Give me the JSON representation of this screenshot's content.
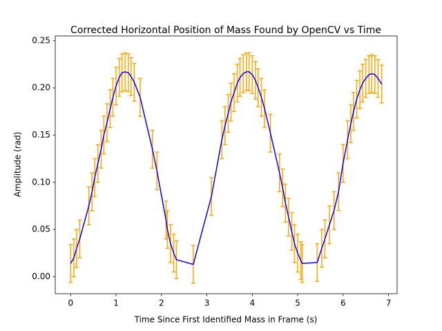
{
  "chart_data": {
    "type": "line",
    "title": "Corrected Horizontal Position of Mass Found by OpenCV vs Time",
    "xlabel": "Time Since First Identified Mass in Frame (s)",
    "ylabel": "Amplitude (rad)",
    "x": [
      0.0,
      0.07,
      0.13,
      0.2,
      0.4,
      0.47,
      0.53,
      0.6,
      0.67,
      0.73,
      0.8,
      0.87,
      0.93,
      1.0,
      1.07,
      1.13,
      1.2,
      1.27,
      1.33,
      1.4,
      1.53,
      1.8,
      1.9,
      2.1,
      2.13,
      2.2,
      2.27,
      2.33,
      2.7,
      3.1,
      3.33,
      3.4,
      3.47,
      3.53,
      3.6,
      3.67,
      3.73,
      3.8,
      3.87,
      3.93,
      4.0,
      4.07,
      4.13,
      4.2,
      4.27,
      4.4,
      4.6,
      4.67,
      4.73,
      4.8,
      4.87,
      4.93,
      5.0,
      5.07,
      5.1,
      5.43,
      5.53,
      5.6,
      5.7,
      5.8,
      5.9,
      6.0,
      6.1,
      6.17,
      6.23,
      6.3,
      6.37,
      6.43,
      6.5,
      6.57,
      6.63,
      6.7,
      6.77,
      6.85
    ],
    "values": [
      0.014,
      0.02,
      0.03,
      0.04,
      0.075,
      0.09,
      0.105,
      0.12,
      0.135,
      0.15,
      0.163,
      0.178,
      0.19,
      0.202,
      0.211,
      0.216,
      0.217,
      0.216,
      0.212,
      0.206,
      0.19,
      0.135,
      0.112,
      0.06,
      0.05,
      0.035,
      0.025,
      0.018,
      0.013,
      0.085,
      0.145,
      0.16,
      0.173,
      0.185,
      0.195,
      0.205,
      0.211,
      0.215,
      0.217,
      0.217,
      0.214,
      0.208,
      0.2,
      0.19,
      0.178,
      0.152,
      0.11,
      0.094,
      0.078,
      0.063,
      0.048,
      0.035,
      0.025,
      0.017,
      0.014,
      0.015,
      0.03,
      0.04,
      0.055,
      0.07,
      0.09,
      0.12,
      0.145,
      0.162,
      0.175,
      0.188,
      0.198,
      0.205,
      0.21,
      0.214,
      0.215,
      0.214,
      0.21,
      0.204
    ],
    "error": 0.02,
    "color": "#0000ff",
    "error_color": "#ffa500",
    "xlim": [
      -0.34,
      7.19
    ],
    "ylim": [
      -0.018,
      0.255
    ],
    "xticks": [
      0,
      1,
      2,
      3,
      4,
      5,
      6,
      7
    ],
    "yticks": [
      {
        "value": 0,
        "label": "0.00"
      },
      {
        "value": 0.05,
        "label": "0.05"
      },
      {
        "value": 0.1,
        "label": "0.10"
      },
      {
        "value": 0.15,
        "label": "0.15"
      },
      {
        "value": 0.2,
        "label": "0.20"
      },
      {
        "value": 0.25,
        "label": "0.25"
      }
    ]
  }
}
